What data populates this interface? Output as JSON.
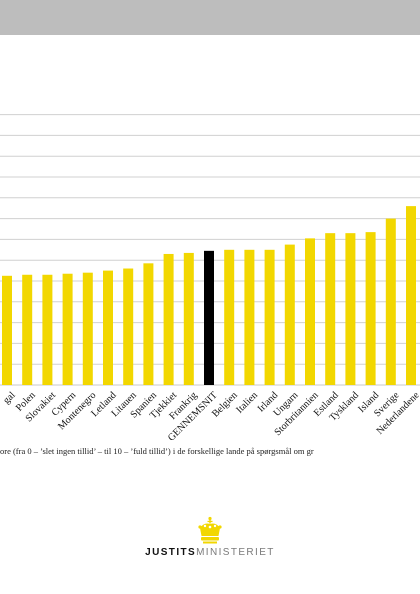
{
  "colors": {
    "bar": "#f2d700",
    "highlight_bar": "#000000",
    "gridline": "#d0d0d0",
    "top_band": "#bdbdbd"
  },
  "chart_data": {
    "type": "bar",
    "categories": [
      "Portugal",
      "Polen",
      "Slovakiet",
      "Cypern",
      "Montenegro",
      "Letland",
      "Litauen",
      "Spanien",
      "Tjekkiet",
      "Frankrig",
      "GENNEMSNIT",
      "Belgien",
      "Italien",
      "Irland",
      "Ungarn",
      "Storbritannien",
      "Estland",
      "Tyskland",
      "Island",
      "Sverige",
      "Nederlandene"
    ],
    "categories_shown": [
      "gal",
      "Polen",
      "Slovakiet",
      "Cypern",
      "Montenegro",
      "Letland",
      "Litauen",
      "Spanien",
      "Tjekkiet",
      "Frankrig",
      "GENNEMSNIT",
      "Belgien",
      "Italien",
      "Irland",
      "Ungarn",
      "Storbritannien",
      "Estland",
      "Tyskland",
      "Island",
      "Sverige",
      "Nederlandene"
    ],
    "values": [
      5.25,
      5.3,
      5.3,
      5.35,
      5.4,
      5.5,
      5.6,
      5.85,
      6.3,
      6.35,
      6.45,
      6.5,
      6.5,
      6.5,
      6.75,
      7.05,
      7.3,
      7.3,
      7.35,
      8.0,
      8.6
    ],
    "highlight_category": "GENNEMSNIT",
    "grid": true,
    "legend": "none"
  },
  "caption": "ore (fra 0 – ’slet ingen tillid’  – til 10 – ’fuld tillid’)  i de forskellige lande på spørgsmål om gr",
  "logo": {
    "bold": "JUSTITS",
    "light": "MINISTERIET"
  }
}
